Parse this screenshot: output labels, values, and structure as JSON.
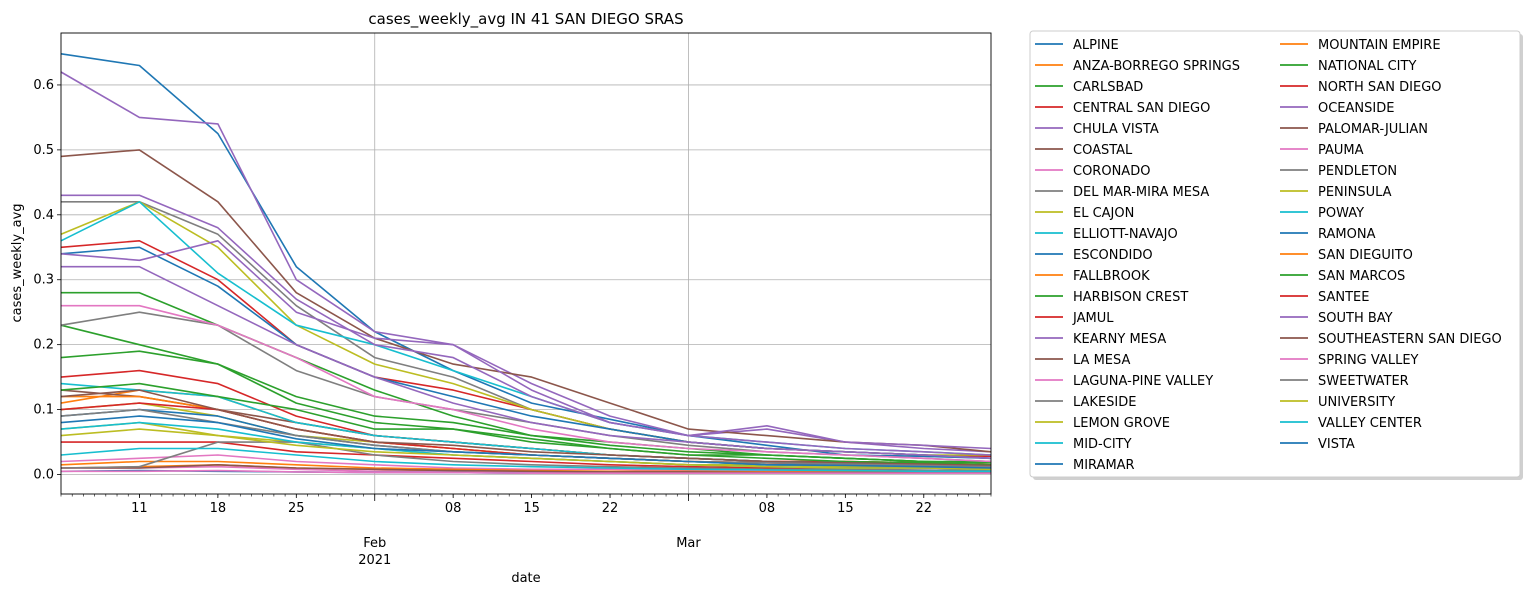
{
  "chart_data": {
    "type": "line",
    "title": "cases_weekly_avg IN 41 SAN DIEGO SRAS",
    "xlabel": "date",
    "ylabel": "cases_weekly_avg",
    "x_range": [
      "2021-01-04",
      "2021-03-28"
    ],
    "ylim": [
      -0.03,
      0.68
    ],
    "grid": true,
    "legend_placement": "outside-right, 2 columns",
    "x_ticks": [
      {
        "date": "2021-01-11",
        "label": "11"
      },
      {
        "date": "2021-01-18",
        "label": "18"
      },
      {
        "date": "2021-01-25",
        "label": "25"
      },
      {
        "date": "2021-02-01",
        "label": "Feb\n2021"
      },
      {
        "date": "2021-02-08",
        "label": "08"
      },
      {
        "date": "2021-02-15",
        "label": "15"
      },
      {
        "date": "2021-02-22",
        "label": "22"
      },
      {
        "date": "2021-03-01",
        "label": "Mar"
      },
      {
        "date": "2021-03-08",
        "label": "08"
      },
      {
        "date": "2021-03-15",
        "label": "15"
      },
      {
        "date": "2021-03-22",
        "label": "22"
      }
    ],
    "y_ticks": [
      "0.0",
      "0.1",
      "0.2",
      "0.3",
      "0.4",
      "0.5",
      "0.6"
    ],
    "y_tick_values": [
      0,
      0.1,
      0.2,
      0.3,
      0.4,
      0.5,
      0.6
    ],
    "sample_dates": [
      "2021-01-04",
      "2021-01-11",
      "2021-01-18",
      "2021-01-25",
      "2021-02-01",
      "2021-02-08",
      "2021-02-15",
      "2021-02-22",
      "2021-03-01",
      "2021-03-08",
      "2021-03-15",
      "2021-03-22",
      "2021-03-28"
    ],
    "series": [
      {
        "name": "ALPINE",
        "color": "#1f77b4",
        "values": [
          0.648,
          0.63,
          0.525,
          0.32,
          0.22,
          0.16,
          0.11,
          0.085,
          0.06,
          0.045,
          0.03,
          0.028,
          0.025
        ]
      },
      {
        "name": "ANZA-BORREGO SPRINGS",
        "color": "#ff7f0e",
        "values": [
          0.01,
          0.012,
          0.015,
          0.01,
          0.008,
          0.005,
          0.005,
          0.004,
          0.004,
          0.003,
          0.003,
          0.003,
          0.003
        ]
      },
      {
        "name": "CARLSBAD",
        "color": "#2ca02c",
        "values": [
          0.28,
          0.28,
          0.23,
          0.18,
          0.13,
          0.09,
          0.06,
          0.05,
          0.04,
          0.03,
          0.025,
          0.02,
          0.018
        ]
      },
      {
        "name": "CENTRAL SAN DIEGO",
        "color": "#d62728",
        "values": [
          0.35,
          0.36,
          0.3,
          0.2,
          0.15,
          0.13,
          0.1,
          0.07,
          0.05,
          0.04,
          0.035,
          0.03,
          0.028
        ]
      },
      {
        "name": "CHULA VISTA",
        "color": "#9467bd",
        "values": [
          0.62,
          0.55,
          0.54,
          0.3,
          0.22,
          0.2,
          0.14,
          0.09,
          0.06,
          0.07,
          0.05,
          0.04,
          0.035
        ]
      },
      {
        "name": "COASTAL",
        "color": "#8c564b",
        "values": [
          0.49,
          0.5,
          0.42,
          0.28,
          0.21,
          0.17,
          0.15,
          0.11,
          0.07,
          0.06,
          0.05,
          0.045,
          0.035
        ]
      },
      {
        "name": "CORONADO",
        "color": "#e377c2",
        "values": [
          0.02,
          0.025,
          0.03,
          0.02,
          0.015,
          0.01,
          0.008,
          0.008,
          0.006,
          0.005,
          0.005,
          0.005,
          0.004
        ]
      },
      {
        "name": "DEL MAR-MIRA MESA",
        "color": "#7f7f7f",
        "values": [
          0.42,
          0.42,
          0.37,
          0.26,
          0.18,
          0.15,
          0.1,
          0.07,
          0.05,
          0.04,
          0.035,
          0.03,
          0.025
        ]
      },
      {
        "name": "EL CAJON",
        "color": "#bcbd22",
        "values": [
          0.37,
          0.42,
          0.35,
          0.23,
          0.17,
          0.14,
          0.1,
          0.07,
          0.05,
          0.04,
          0.035,
          0.03,
          0.03
        ]
      },
      {
        "name": "ELLIOTT-NAVAJO",
        "color": "#17becf",
        "values": [
          0.36,
          0.42,
          0.31,
          0.23,
          0.2,
          0.16,
          0.12,
          0.08,
          0.06,
          0.05,
          0.04,
          0.035,
          0.03
        ]
      },
      {
        "name": "ESCONDIDO",
        "color": "#1f77b4",
        "values": [
          0.34,
          0.35,
          0.29,
          0.2,
          0.15,
          0.12,
          0.09,
          0.07,
          0.05,
          0.04,
          0.035,
          0.03,
          0.025
        ]
      },
      {
        "name": "FALLBROOK",
        "color": "#ff7f0e",
        "values": [
          0.11,
          0.13,
          0.12,
          0.08,
          0.06,
          0.05,
          0.04,
          0.03,
          0.025,
          0.02,
          0.02,
          0.018,
          0.015
        ]
      },
      {
        "name": "HARBISON CREST",
        "color": "#2ca02c",
        "values": [
          0.23,
          0.2,
          0.17,
          0.11,
          0.08,
          0.07,
          0.05,
          0.04,
          0.03,
          0.03,
          0.025,
          0.02,
          0.02
        ]
      },
      {
        "name": "JAMUL",
        "color": "#d62728",
        "values": [
          0.15,
          0.16,
          0.14,
          0.09,
          0.06,
          0.05,
          0.04,
          0.03,
          0.025,
          0.02,
          0.02,
          0.018,
          0.015
        ]
      },
      {
        "name": "KEARNY MESA",
        "color": "#9467bd",
        "values": [
          0.43,
          0.43,
          0.38,
          0.27,
          0.2,
          0.18,
          0.12,
          0.08,
          0.06,
          0.05,
          0.04,
          0.035,
          0.03
        ]
      },
      {
        "name": "LA MESA",
        "color": "#8c564b",
        "values": [
          0.13,
          0.12,
          0.1,
          0.08,
          0.06,
          0.05,
          0.04,
          0.03,
          0.025,
          0.02,
          0.018,
          0.016,
          0.014
        ]
      },
      {
        "name": "LAGUNA-PINE VALLEY",
        "color": "#e377c2",
        "values": [
          0.01,
          0.01,
          0.012,
          0.008,
          0.005,
          0.004,
          0.004,
          0.003,
          0.003,
          0.003,
          0.003,
          0.002,
          0.002
        ]
      },
      {
        "name": "LAKESIDE",
        "color": "#7f7f7f",
        "values": [
          0.23,
          0.25,
          0.23,
          0.16,
          0.12,
          0.1,
          0.08,
          0.06,
          0.045,
          0.035,
          0.03,
          0.025,
          0.02
        ]
      },
      {
        "name": "LEMON GROVE",
        "color": "#bcbd22",
        "values": [
          0.07,
          0.08,
          0.06,
          0.05,
          0.04,
          0.03,
          0.025,
          0.02,
          0.015,
          0.015,
          0.012,
          0.01,
          0.01
        ]
      },
      {
        "name": "MID-CITY",
        "color": "#17becf",
        "values": [
          0.14,
          0.13,
          0.12,
          0.08,
          0.06,
          0.05,
          0.04,
          0.03,
          0.025,
          0.02,
          0.018,
          0.015,
          0.012
        ]
      },
      {
        "name": "MIRAMAR",
        "color": "#1f77b4",
        "values": [
          0.005,
          0.006,
          0.005,
          0.004,
          0.003,
          0.003,
          0.002,
          0.002,
          0.002,
          0.002,
          0.002,
          0.002,
          0.002
        ]
      },
      {
        "name": "MOUNTAIN EMPIRE",
        "color": "#ff7f0e",
        "values": [
          0.015,
          0.02,
          0.02,
          0.015,
          0.01,
          0.008,
          0.006,
          0.005,
          0.005,
          0.004,
          0.004,
          0.004,
          0.003
        ]
      },
      {
        "name": "NATIONAL CITY",
        "color": "#2ca02c",
        "values": [
          0.18,
          0.19,
          0.17,
          0.12,
          0.09,
          0.08,
          0.06,
          0.045,
          0.035,
          0.03,
          0.025,
          0.02,
          0.018
        ]
      },
      {
        "name": "NORTH SAN DIEGO",
        "color": "#d62728",
        "values": [
          0.05,
          0.05,
          0.05,
          0.035,
          0.03,
          0.025,
          0.02,
          0.015,
          0.012,
          0.01,
          0.01,
          0.01,
          0.008
        ]
      },
      {
        "name": "OCEANSIDE",
        "color": "#9467bd",
        "values": [
          0.32,
          0.32,
          0.26,
          0.2,
          0.15,
          0.11,
          0.08,
          0.06,
          0.05,
          0.04,
          0.035,
          0.03,
          0.025
        ]
      },
      {
        "name": "PALOMAR-JULIAN",
        "color": "#8c564b",
        "values": [
          0.01,
          0.01,
          0.015,
          0.01,
          0.008,
          0.006,
          0.005,
          0.004,
          0.004,
          0.003,
          0.003,
          0.003,
          0.003
        ]
      },
      {
        "name": "PAUMA",
        "color": "#e377c2",
        "values": [
          0.005,
          0.005,
          0.006,
          0.004,
          0.003,
          0.003,
          0.002,
          0.002,
          0.002,
          0.002,
          0.002,
          0.002,
          0.002
        ]
      },
      {
        "name": "PENDLETON",
        "color": "#7f7f7f",
        "values": [
          0.01,
          0.012,
          0.05,
          0.05,
          0.03,
          0.02,
          0.015,
          0.012,
          0.01,
          0.008,
          0.008,
          0.007,
          0.006
        ]
      },
      {
        "name": "PENINSULA",
        "color": "#bcbd22",
        "values": [
          0.1,
          0.11,
          0.09,
          0.06,
          0.05,
          0.04,
          0.03,
          0.025,
          0.02,
          0.015,
          0.015,
          0.012,
          0.01
        ]
      },
      {
        "name": "POWAY",
        "color": "#17becf",
        "values": [
          0.07,
          0.08,
          0.07,
          0.05,
          0.04,
          0.03,
          0.025,
          0.02,
          0.015,
          0.012,
          0.01,
          0.01,
          0.008
        ]
      },
      {
        "name": "RAMONA",
        "color": "#1f77b4",
        "values": [
          0.09,
          0.1,
          0.09,
          0.06,
          0.045,
          0.035,
          0.03,
          0.025,
          0.02,
          0.015,
          0.015,
          0.012,
          0.01
        ]
      },
      {
        "name": "SAN DIEGUITO",
        "color": "#ff7f0e",
        "values": [
          0.12,
          0.12,
          0.1,
          0.07,
          0.05,
          0.04,
          0.03,
          0.025,
          0.02,
          0.018,
          0.016,
          0.014,
          0.012
        ]
      },
      {
        "name": "SAN MARCOS",
        "color": "#2ca02c",
        "values": [
          0.13,
          0.14,
          0.12,
          0.1,
          0.07,
          0.07,
          0.055,
          0.04,
          0.03,
          0.025,
          0.02,
          0.018,
          0.015
        ]
      },
      {
        "name": "SANTEE",
        "color": "#d62728",
        "values": [
          0.1,
          0.11,
          0.1,
          0.07,
          0.05,
          0.04,
          0.03,
          0.025,
          0.02,
          0.018,
          0.016,
          0.014,
          0.012
        ]
      },
      {
        "name": "SOUTH BAY",
        "color": "#9467bd",
        "values": [
          0.34,
          0.33,
          0.36,
          0.25,
          0.21,
          0.2,
          0.13,
          0.08,
          0.06,
          0.075,
          0.05,
          0.045,
          0.04
        ]
      },
      {
        "name": "SOUTHEASTERN SAN DIEGO",
        "color": "#8c564b",
        "values": [
          0.12,
          0.13,
          0.1,
          0.07,
          0.05,
          0.045,
          0.035,
          0.03,
          0.025,
          0.02,
          0.018,
          0.016,
          0.014
        ]
      },
      {
        "name": "SPRING VALLEY",
        "color": "#e377c2",
        "values": [
          0.26,
          0.26,
          0.23,
          0.18,
          0.12,
          0.1,
          0.07,
          0.05,
          0.04,
          0.035,
          0.03,
          0.025,
          0.02
        ]
      },
      {
        "name": "SWEETWATER",
        "color": "#7f7f7f",
        "values": [
          0.09,
          0.1,
          0.08,
          0.06,
          0.045,
          0.035,
          0.03,
          0.025,
          0.02,
          0.018,
          0.016,
          0.014,
          0.012
        ]
      },
      {
        "name": "UNIVERSITY",
        "color": "#bcbd22",
        "values": [
          0.06,
          0.07,
          0.06,
          0.045,
          0.035,
          0.03,
          0.025,
          0.02,
          0.015,
          0.012,
          0.01,
          0.01,
          0.008
        ]
      },
      {
        "name": "VALLEY CENTER",
        "color": "#17becf",
        "values": [
          0.03,
          0.04,
          0.04,
          0.03,
          0.02,
          0.015,
          0.012,
          0.01,
          0.008,
          0.007,
          0.006,
          0.005,
          0.005
        ]
      },
      {
        "name": "VISTA",
        "color": "#1f77b4",
        "values": [
          0.08,
          0.09,
          0.08,
          0.055,
          0.04,
          0.035,
          0.03,
          0.025,
          0.02,
          0.015,
          0.014,
          0.012,
          0.01
        ]
      }
    ]
  }
}
